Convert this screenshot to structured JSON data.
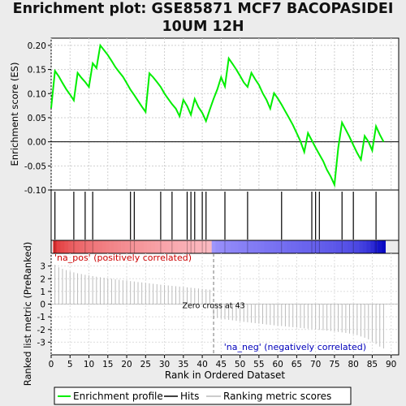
{
  "title_line1": "Enrichment plot: GSE85871 MCF7 BACOPASIDEI",
  "title_line2": "10UM 12H",
  "colors": {
    "es_line": "#00ee00",
    "zero_line": "#000000",
    "hit": "#000000",
    "pos_label": "#cc0000",
    "neg_label": "#0000bb",
    "metric": "#bbbbbb"
  },
  "chart_data": [
    {
      "type": "line",
      "name": "enrichment-profile",
      "ylabel": "Enrichment score (ES)",
      "ylim": [
        -0.1,
        0.215
      ],
      "yticks": [
        -0.1,
        -0.05,
        0.0,
        0.05,
        0.1,
        0.15,
        0.2
      ],
      "ytick_labels": [
        "-0.10",
        "-0.05",
        "0.00",
        "0.05",
        "0.10",
        "0.15",
        "0.20"
      ],
      "grid": true,
      "x": [
        0,
        1,
        2,
        3,
        4,
        5,
        6,
        7,
        8,
        9,
        10,
        11,
        12,
        13,
        14,
        15,
        16,
        17,
        18,
        19,
        20,
        21,
        22,
        23,
        24,
        25,
        26,
        27,
        28,
        29,
        30,
        31,
        32,
        33,
        34,
        35,
        36,
        37,
        38,
        39,
        40,
        41,
        42,
        43,
        44,
        45,
        46,
        47,
        48,
        49,
        50,
        51,
        52,
        53,
        54,
        55,
        56,
        57,
        58,
        59,
        60,
        61,
        62,
        63,
        64,
        65,
        66,
        67,
        68,
        69,
        70,
        71,
        72,
        73,
        74,
        75,
        76,
        77,
        78,
        79,
        80,
        81,
        82,
        83,
        84,
        85,
        86,
        87,
        88
      ],
      "y": [
        0.07,
        0.147,
        0.136,
        0.122,
        0.109,
        0.098,
        0.086,
        0.143,
        0.133,
        0.124,
        0.114,
        0.163,
        0.153,
        0.2,
        0.19,
        0.18,
        0.168,
        0.155,
        0.145,
        0.135,
        0.122,
        0.108,
        0.097,
        0.085,
        0.073,
        0.062,
        0.142,
        0.134,
        0.124,
        0.114,
        0.1,
        0.089,
        0.078,
        0.069,
        0.053,
        0.087,
        0.074,
        0.056,
        0.089,
        0.072,
        0.06,
        0.043,
        0.067,
        0.089,
        0.109,
        0.134,
        0.115,
        0.173,
        0.162,
        0.15,
        0.137,
        0.123,
        0.114,
        0.143,
        0.13,
        0.118,
        0.101,
        0.087,
        0.069,
        0.101,
        0.09,
        0.077,
        0.063,
        0.049,
        0.035,
        0.018,
        0.001,
        -0.021,
        0.018,
        0.003,
        -0.012,
        -0.026,
        -0.04,
        -0.058,
        -0.072,
        -0.089,
        -0.012,
        0.04,
        0.025,
        0.01,
        -0.007,
        -0.023,
        -0.037,
        0.012,
        0.0,
        -0.018,
        0.032,
        0.015,
        0.0
      ]
    },
    {
      "type": "scatter",
      "name": "hits",
      "x": [
        1,
        6,
        9,
        11,
        21,
        22,
        29,
        32,
        36,
        37,
        38,
        40,
        41,
        46,
        52,
        61,
        69,
        70,
        71,
        77,
        80,
        86
      ]
    },
    {
      "type": "bar",
      "name": "ranking-metric",
      "xlabel": "Rank in Ordered Dataset",
      "ylabel": "Ranked list metric (PreRanked)",
      "xlim": [
        0,
        92
      ],
      "xticks": [
        0,
        5,
        10,
        15,
        20,
        25,
        30,
        35,
        40,
        45,
        50,
        55,
        60,
        65,
        70,
        75,
        80,
        85,
        90
      ],
      "ylim": [
        -4,
        4
      ],
      "yticks": [
        -3,
        -2,
        -1,
        0,
        1,
        2,
        3
      ],
      "x": [
        1,
        2,
        3,
        4,
        5,
        6,
        7,
        8,
        9,
        10,
        11,
        12,
        13,
        14,
        15,
        16,
        17,
        18,
        19,
        20,
        21,
        22,
        23,
        24,
        25,
        26,
        27,
        28,
        29,
        30,
        31,
        32,
        33,
        34,
        35,
        36,
        37,
        38,
        39,
        40,
        41,
        42,
        43,
        44,
        45,
        46,
        47,
        48,
        49,
        50,
        51,
        52,
        53,
        54,
        55,
        56,
        57,
        58,
        59,
        60,
        61,
        62,
        63,
        64,
        65,
        66,
        67,
        68,
        69,
        70,
        71,
        72,
        73,
        74,
        75,
        76,
        77,
        78,
        79,
        80,
        81,
        82,
        83,
        84,
        85,
        86,
        87,
        88
      ],
      "values": [
        3.1,
        2.9,
        2.78,
        2.68,
        2.58,
        2.5,
        2.43,
        2.37,
        2.31,
        2.26,
        2.21,
        2.16,
        2.12,
        2.08,
        2.04,
        2.0,
        1.96,
        1.92,
        1.88,
        1.85,
        1.81,
        1.78,
        1.74,
        1.71,
        1.67,
        1.64,
        1.6,
        1.57,
        1.53,
        1.5,
        1.47,
        1.44,
        1.41,
        1.38,
        1.35,
        1.32,
        1.29,
        1.26,
        1.23,
        1.2,
        1.17,
        1.14,
        -0.95,
        -1.1,
        -1.15,
        -1.2,
        -1.24,
        -1.28,
        -1.32,
        -1.36,
        -1.4,
        -1.43,
        -1.47,
        -1.5,
        -1.54,
        -1.57,
        -1.61,
        -1.64,
        -1.67,
        -1.7,
        -1.73,
        -1.76,
        -1.79,
        -1.82,
        -1.85,
        -1.88,
        -1.91,
        -1.94,
        -1.97,
        -2.0,
        -2.03,
        -2.06,
        -2.09,
        -2.12,
        -2.15,
        -2.19,
        -2.23,
        -2.27,
        -2.32,
        -2.38,
        -2.45,
        -2.55,
        -2.65,
        -2.78,
        -2.95,
        -3.15,
        -3.35,
        -3.5
      ],
      "zero_cross_label": "Zero cross at 43",
      "zero_cross_x": 43,
      "pos_label": "'na_pos' (positively correlated)",
      "neg_label": "'na_neg' (negatively correlated)"
    }
  ],
  "legend": [
    {
      "key": "es",
      "label": "Enrichment profile"
    },
    {
      "key": "hits",
      "label": "Hits"
    },
    {
      "key": "metric",
      "label": "Ranking metric scores"
    }
  ]
}
